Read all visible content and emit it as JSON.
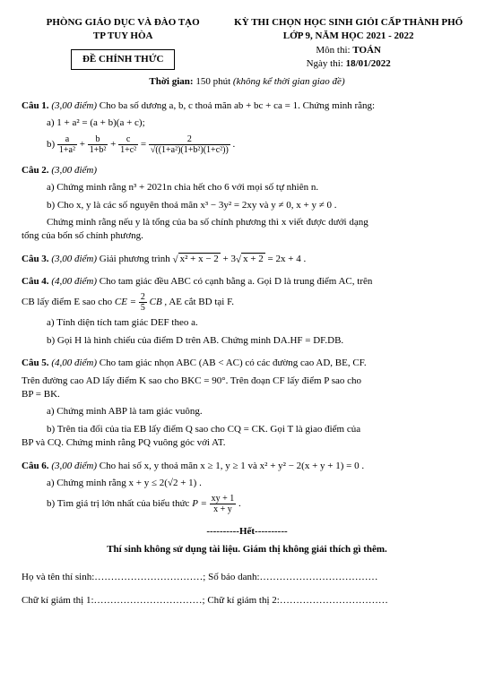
{
  "header": {
    "dept": "PHÒNG GIÁO DỤC VÀ ĐÀO TẠO",
    "city": "TP TUY HÒA",
    "official": "ĐỀ CHÍNH THỨC",
    "exam_title": "KỲ THI CHỌN HỌC SINH GIỎI CẤP THÀNH PHỐ",
    "grade_year": "LỚP 9, NĂM HỌC 2021 - 2022",
    "subject_label": "Môn thi:",
    "subject": "TOÁN",
    "date_label": "Ngày thi:",
    "date": "18/01/2022",
    "time_label": "Thời gian:",
    "time_value": "150 phút",
    "time_note": "(không kể thời gian giao đề)"
  },
  "q1": {
    "head": "Câu 1.",
    "pts": "(3,00 điểm)",
    "text": "Cho ba số dương a, b, c thoả mãn ab + bc + ca = 1. Chứng minh rằng:",
    "a_label": "a)",
    "a_expr": "1 + a² = (a + b)(a + c);",
    "b_label": "b)"
  },
  "q2": {
    "head": "Câu 2.",
    "pts": "(3,00 điểm)",
    "a": "a) Chứng minh rằng  n³ + 2021n  chia hết cho 6 với mọi số tự nhiên n.",
    "b": "b) Cho x, y là các số nguyên thoả mãn  x³ − 3y² = 2xy  và  y ≠ 0, x + y ≠ 0 .",
    "b2": "Chứng minh rằng nếu y là tổng của ba số chính phương thì x viết được dưới dạng",
    "b3": "tổng của bốn số chính phương."
  },
  "q3": {
    "head": "Câu 3.",
    "pts": "(3,00 điểm)",
    "text": "Giải phương trình"
  },
  "q4": {
    "head": "Câu 4.",
    "pts": "(4,00 điểm)",
    "text1": "Cho tam giác đều ABC có cạnh bằng a. Gọi D là trung điểm AC, trên",
    "text2": "CB lấy điểm E sao cho",
    "text3": ", AE cắt BD tại F.",
    "a": "a) Tính diện tích tam giác DEF theo a.",
    "b": "b) Gọi H là hình chiếu của điểm D trên AB. Chứng minh DA.HF = DF.DB."
  },
  "q5": {
    "head": "Câu 5.",
    "pts": "(4,00 điểm)",
    "text1": "Cho tam giác nhọn ABC (AB < AC) có các đường cao AD, BE, CF.",
    "text2": "Trên đường cao AD lấy điểm K sao cho  BKC = 90°. Trên đoạn CF lấy điểm P sao cho",
    "text3": "BP = BK.",
    "a": "a) Chứng minh ABP là tam giác vuông.",
    "b1": "b) Trên tia đối của tia EB lấy điểm Q sao cho CQ = CK. Gọi T là giao điểm của",
    "b2": "BP và CQ. Chứng minh rằng PQ vuông góc với AT."
  },
  "q6": {
    "head": "Câu 6.",
    "pts": "(3,00 điểm)",
    "text": "Cho hai số x, y thoả mãn  x ≥ 1, y ≥ 1  và  x² + y² − 2(x + y + 1) = 0 .",
    "a_label": "a) Chứng minh rằng",
    "a_expr": "x + y ≤ 2(√2 + 1) .",
    "b_label": "b) Tìm giá trị lớn nhất của biểu thức"
  },
  "footer": {
    "end": "----------Hết----------",
    "note": "Thí sinh không sử dụng tài liệu. Giám thị không giải thích gì thêm.",
    "name": "Họ và tên thí sinh:……………………………; Số báo danh:………………………………",
    "sig": "Chữ kí giám thị 1:……………………………; Chữ kí giám thị 2:……………………………"
  }
}
